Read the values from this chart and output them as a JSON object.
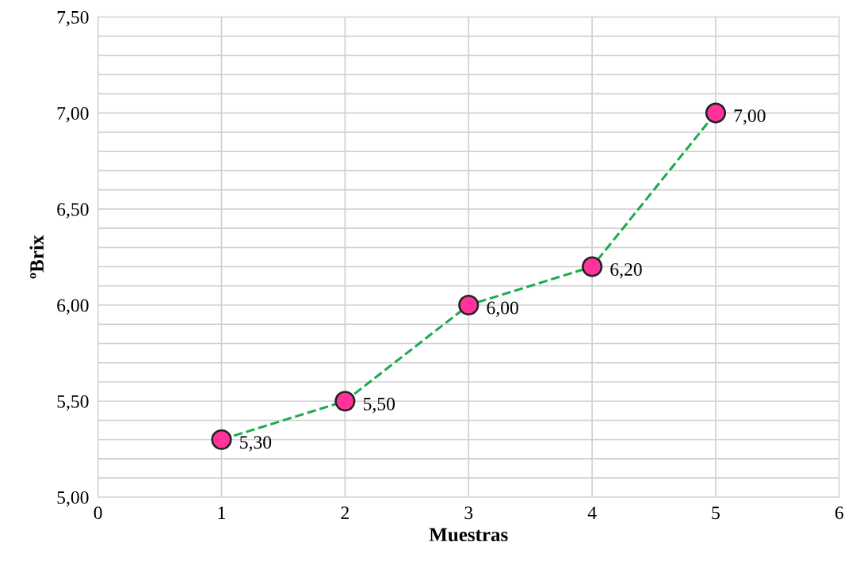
{
  "chart_data": {
    "type": "line",
    "xlabel": "Muestras",
    "ylabel": "ºBrix",
    "x": [
      1,
      2,
      3,
      4,
      5
    ],
    "series": [
      {
        "color": "#1faa4f",
        "values": [
          5.3,
          5.5,
          6.0,
          6.2,
          7.0
        ],
        "value_labels": [
          "5,30",
          "5,50",
          "6,00",
          "6,20",
          "7,00"
        ],
        "colors": [
          "#ff3399",
          "#ff3399",
          "#ff3399",
          "#ff3399",
          "#ff3399"
        ]
      }
    ],
    "marker": "circle",
    "line_style": "dashed",
    "xlim": [
      0,
      6
    ],
    "xticks": [
      0,
      1,
      2,
      3,
      4,
      5,
      6
    ],
    "ylim": [
      5.0,
      7.5
    ],
    "yticks": [
      {
        "value": 5.0,
        "label": "5,00"
      },
      {
        "value": 5.1,
        "label": null
      },
      {
        "value": 5.2,
        "label": null
      },
      {
        "value": 5.3,
        "label": null
      },
      {
        "value": 5.4,
        "label": null
      },
      {
        "value": 5.5,
        "label": "5,50"
      },
      {
        "value": 5.6,
        "label": null
      },
      {
        "value": 5.7,
        "label": null
      },
      {
        "value": 5.8,
        "label": null
      },
      {
        "value": 5.9,
        "label": null
      },
      {
        "value": 6.0,
        "label": "6,00"
      },
      {
        "value": 6.1,
        "label": null
      },
      {
        "value": 6.2,
        "label": null
      },
      {
        "value": 6.3,
        "label": null
      },
      {
        "value": 6.4,
        "label": null
      },
      {
        "value": 6.5,
        "label": "6,50"
      },
      {
        "value": 6.6,
        "label": null
      },
      {
        "value": 6.7,
        "label": null
      },
      {
        "value": 6.8,
        "label": null
      },
      {
        "value": 6.9,
        "label": null
      },
      {
        "value": 7.0,
        "label": "7,00"
      },
      {
        "value": 7.1,
        "label": null
      },
      {
        "value": 7.2,
        "label": null
      },
      {
        "value": 7.3,
        "label": null
      },
      {
        "value": 7.4,
        "label": null
      },
      {
        "value": 7.5,
        "label": "7,50"
      }
    ],
    "grid": true
  }
}
